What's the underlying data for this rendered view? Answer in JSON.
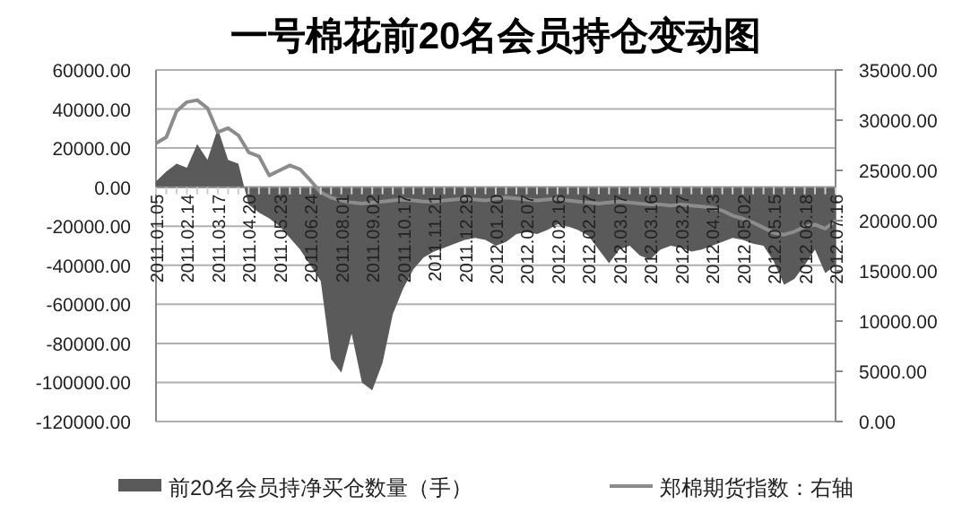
{
  "chart_data": {
    "type": "area",
    "title": "一号棉花前20名会员持仓变动图",
    "categories": [
      "2011.01.05",
      null,
      null,
      "2011.02.14",
      null,
      null,
      "2011.03.17",
      null,
      null,
      "2011.04.20",
      null,
      null,
      "2011.05.23",
      null,
      null,
      "2011.06.24",
      null,
      null,
      "2011.08.01",
      null,
      null,
      "2011.09.02",
      null,
      null,
      "2011.10.17",
      null,
      null,
      "2011.11.21",
      null,
      null,
      "2011.12.29",
      null,
      null,
      "2012.01.20",
      null,
      null,
      "2012.02.07",
      null,
      null,
      "2012.02.16",
      null,
      null,
      "2012.02.27",
      null,
      null,
      "2012.03.07",
      null,
      null,
      "2012.03.16",
      null,
      null,
      "2012.03.27",
      null,
      null,
      "2012.04.13",
      null,
      null,
      "2012.05.02",
      null,
      null,
      "2012.05.15",
      null,
      null,
      "2012.06.18",
      null,
      null,
      "2012.07.16"
    ],
    "series": [
      {
        "name": "前20名会员持净买仓数量（手）",
        "color": "#5a5a5a",
        "values": [
          3000,
          8000,
          12000,
          10000,
          22000,
          14000,
          30000,
          14000,
          12000,
          -9000,
          -13000,
          -16000,
          -20000,
          -26000,
          -32000,
          -40000,
          -48000,
          -88000,
          -95000,
          -75000,
          -100000,
          -104000,
          -90000,
          -65000,
          -52000,
          -42000,
          -36000,
          -33000,
          -31000,
          -29000,
          -27000,
          -26000,
          -27000,
          -30000,
          -28000,
          -24000,
          -23000,
          -24000,
          -22000,
          -19000,
          -20000,
          -22000,
          -25000,
          -32000,
          -39000,
          -32000,
          -30000,
          -35000,
          -37000,
          -32000,
          -30000,
          -31000,
          -33000,
          -32000,
          -30000,
          -28000,
          -26000,
          -27000,
          -29000,
          -30000,
          -38000,
          -50000,
          -47000,
          -40000,
          -32000,
          -44000,
          -40000
        ]
      },
      {
        "name": "郑棉期货指数：右轴",
        "type": "line",
        "axis": "y2",
        "color": "#8c8c8c",
        "values": [
          27700,
          28300,
          30900,
          31800,
          32000,
          31200,
          28800,
          29200,
          28500,
          26800,
          26400,
          24500,
          25000,
          25500,
          25100,
          24000,
          22800,
          22300,
          22000,
          21800,
          21700,
          21800,
          21900,
          22000,
          22100,
          22000,
          21900,
          21900,
          22000,
          22100,
          22200,
          22100,
          22000,
          22200,
          22300,
          22200,
          22100,
          22000,
          22100,
          22200,
          22000,
          21900,
          21800,
          21700,
          21800,
          21900,
          21800,
          21700,
          21600,
          21600,
          21500,
          21600,
          21500,
          21400,
          21300,
          21000,
          20500,
          20200,
          19800,
          19300,
          18800,
          18600,
          18900,
          19400,
          19600,
          19200,
          20000
        ]
      }
    ],
    "ylim": [
      -120000,
      60000
    ],
    "yticks": [
      {
        "value": -120000,
        "label": "-120000.00"
      },
      {
        "value": -100000,
        "label": "-100000.00"
      },
      {
        "value": -80000,
        "label": "-80000.00"
      },
      {
        "value": -60000,
        "label": "-60000.00"
      },
      {
        "value": -40000,
        "label": "-40000.00"
      },
      {
        "value": -20000,
        "label": "-20000.00"
      },
      {
        "value": 0,
        "label": "0.00"
      },
      {
        "value": 20000,
        "label": "20000.00"
      },
      {
        "value": 40000,
        "label": "40000.00"
      },
      {
        "value": 60000,
        "label": "60000.00"
      }
    ],
    "y2lim": [
      0,
      35000
    ],
    "y2ticks": [
      {
        "value": 0,
        "label": "0.00"
      },
      {
        "value": 5000,
        "label": "5000.00"
      },
      {
        "value": 10000,
        "label": "10000.00"
      },
      {
        "value": 15000,
        "label": "15000.00"
      },
      {
        "value": 20000,
        "label": "20000.00"
      },
      {
        "value": 25000,
        "label": "25000.00"
      },
      {
        "value": 30000,
        "label": "30000.00"
      },
      {
        "value": 35000,
        "label": "35000.00"
      }
    ],
    "grid": "y",
    "legend": "bottom",
    "marker": "none",
    "line_style": "solid"
  }
}
